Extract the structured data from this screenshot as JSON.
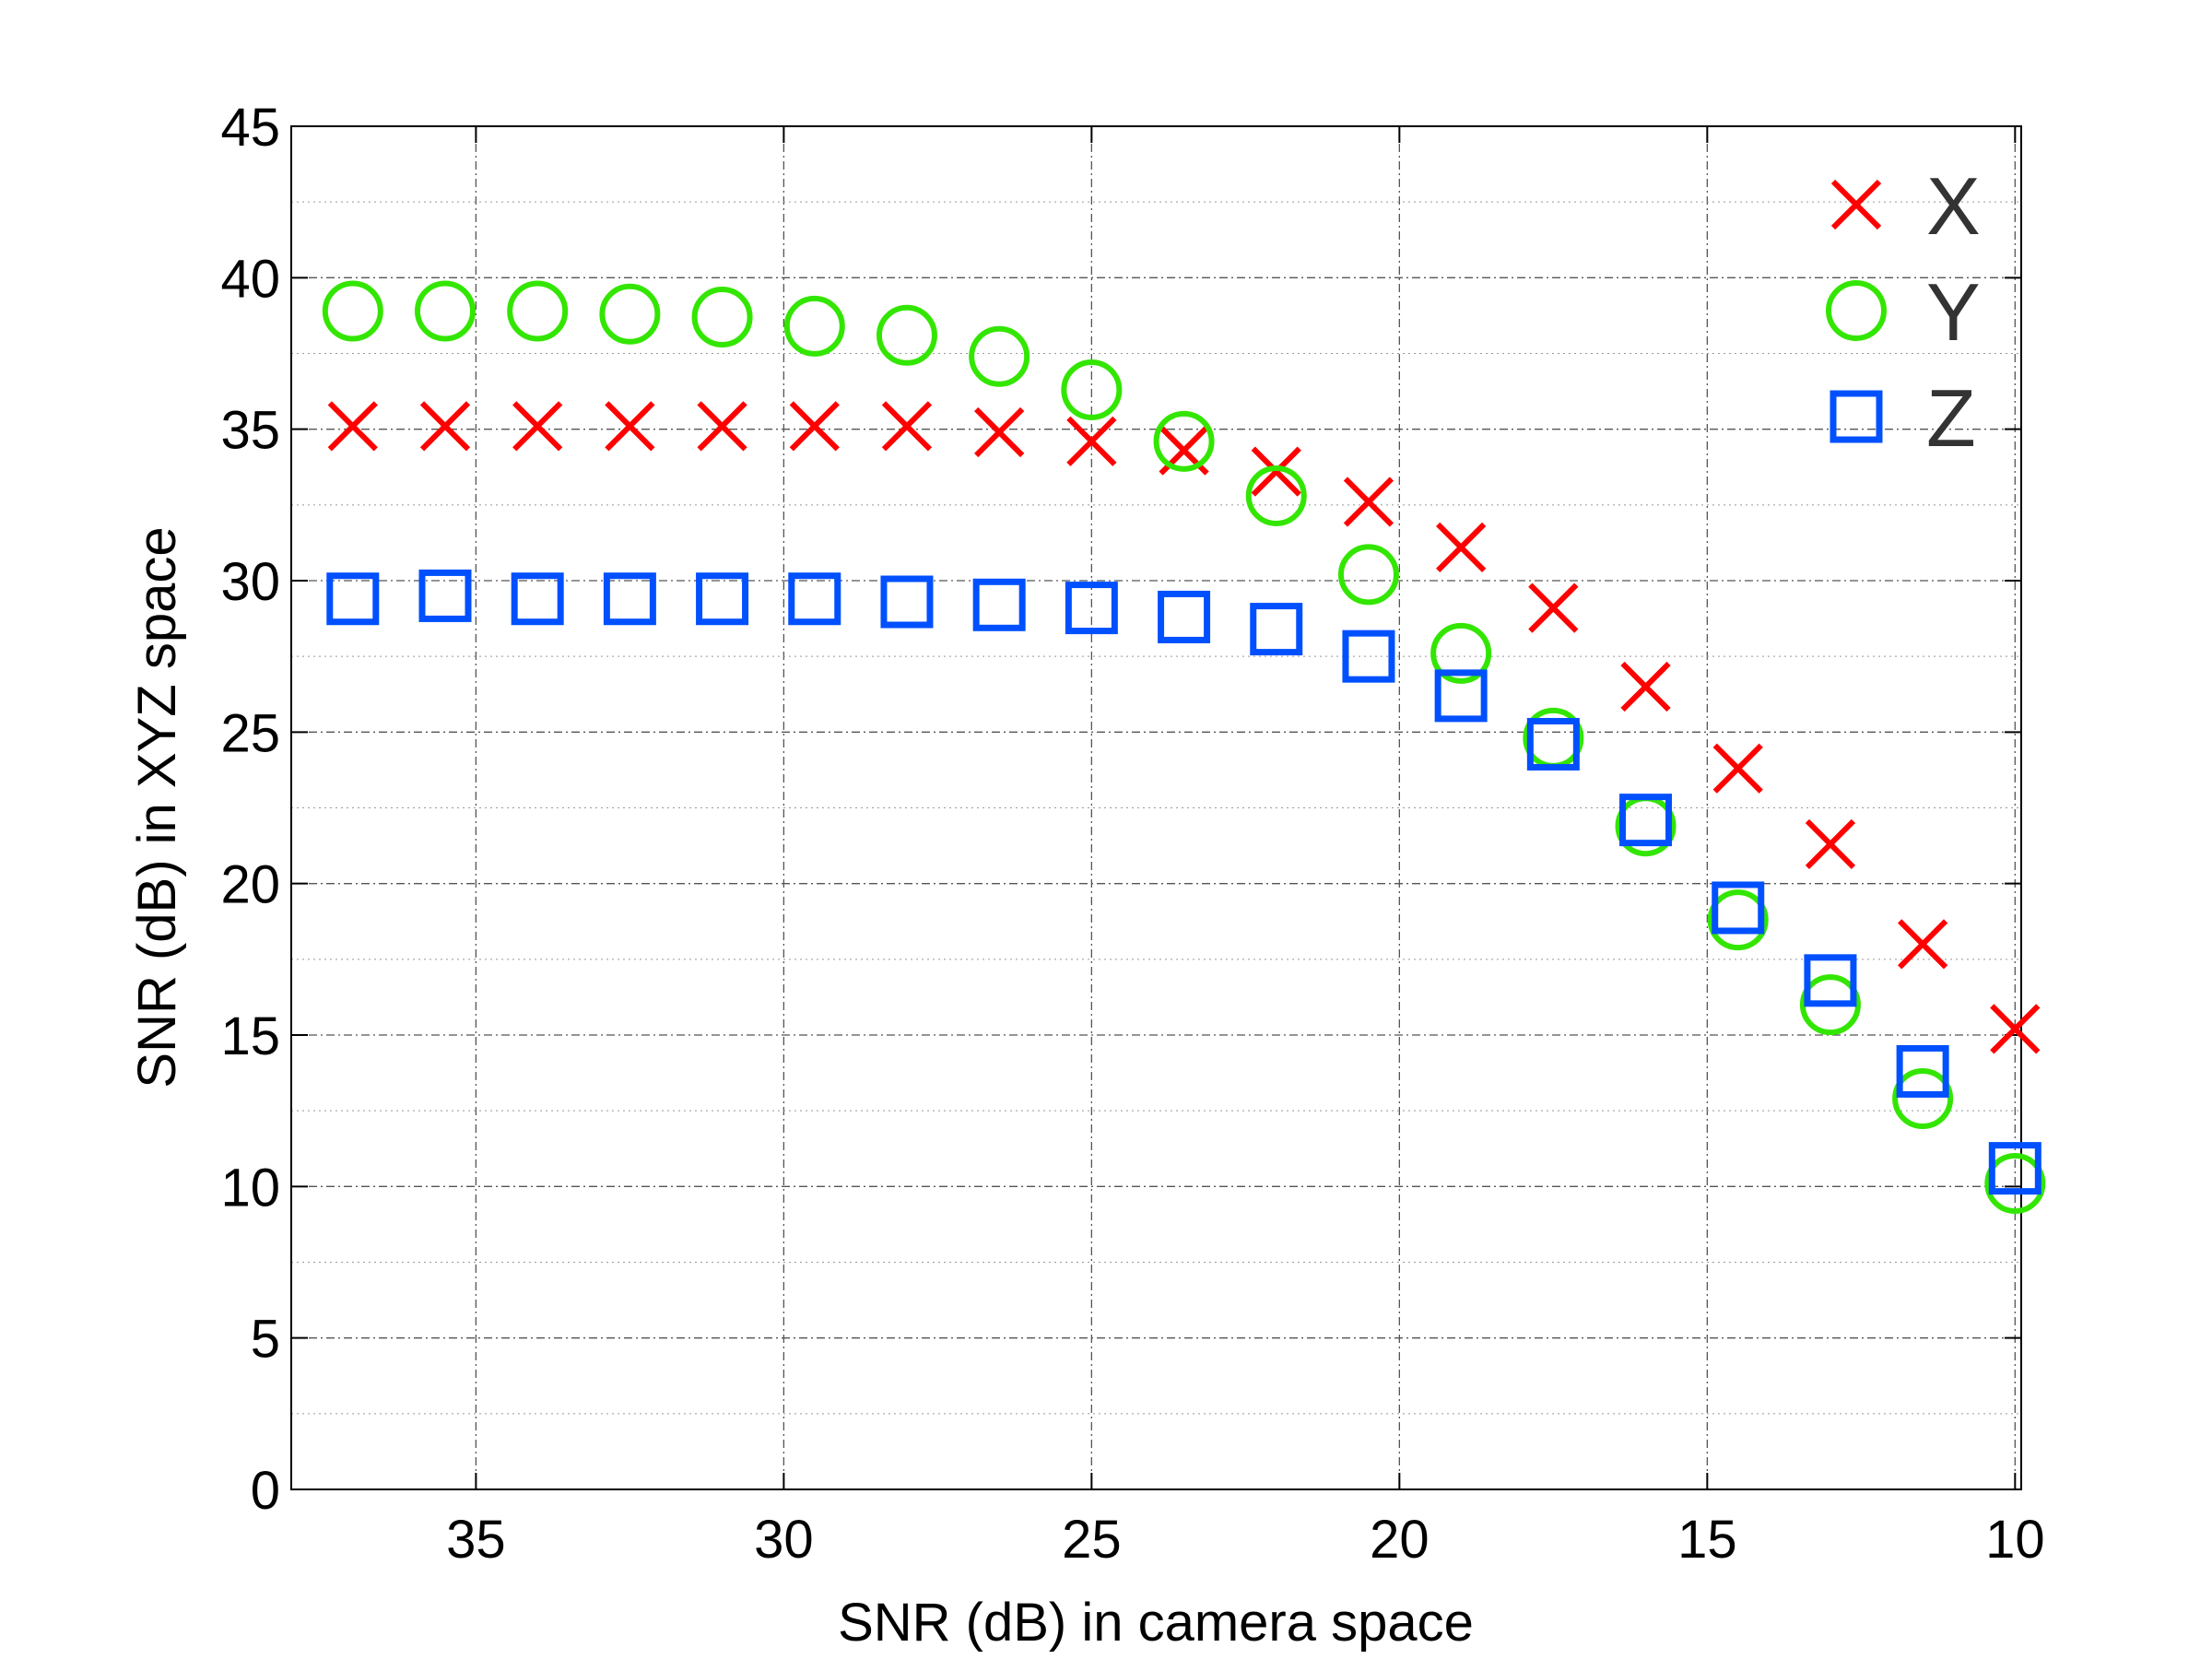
{
  "chart_data": {
    "type": "scatter",
    "title": "",
    "xlabel": "SNR (dB) in camera space",
    "ylabel": "SNR (dB) in XYZ space",
    "xlim": [
      9.9,
      38
    ],
    "x_reversed": true,
    "ylim": [
      0,
      45
    ],
    "x_ticks": [
      35,
      30,
      25,
      20,
      15,
      10
    ],
    "y_ticks": [
      0,
      5,
      10,
      15,
      20,
      25,
      30,
      35,
      40,
      45
    ],
    "grid": true,
    "legend_position": "top-right",
    "x": [
      37,
      35.5,
      34,
      32.5,
      31,
      29.5,
      28,
      26.5,
      25,
      23.5,
      22,
      20.5,
      19,
      17.5,
      16,
      14.5,
      13,
      11.5,
      10
    ],
    "series": [
      {
        "name": "X",
        "marker": "x",
        "color": "#ff0000",
        "values": [
          35.1,
          35.1,
          35.1,
          35.1,
          35.1,
          35.1,
          35.1,
          34.9,
          34.6,
          34.3,
          33.6,
          32.6,
          31.1,
          29.1,
          26.5,
          23.8,
          21.3,
          18.0,
          15.2
        ]
      },
      {
        "name": "Y",
        "marker": "circle",
        "color": "#33e600",
        "values": [
          38.9,
          38.9,
          38.9,
          38.8,
          38.7,
          38.4,
          38.1,
          37.4,
          36.3,
          34.6,
          32.8,
          30.2,
          27.6,
          24.8,
          21.9,
          18.8,
          16.0,
          12.9,
          10.1
        ]
      },
      {
        "name": "Z",
        "marker": "square",
        "color": "#0050ff",
        "values": [
          29.4,
          29.5,
          29.4,
          29.4,
          29.4,
          29.4,
          29.3,
          29.2,
          29.1,
          28.8,
          28.4,
          27.5,
          26.2,
          24.6,
          22.1,
          19.2,
          16.8,
          13.8,
          10.6
        ]
      }
    ]
  }
}
